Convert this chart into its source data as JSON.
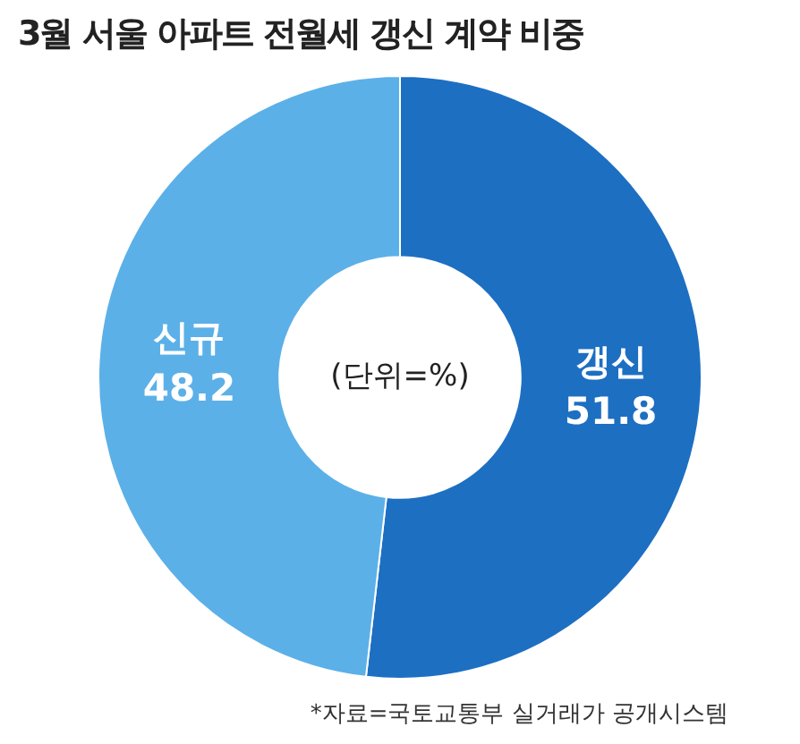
{
  "chart_data": {
    "type": "donut",
    "title": "3월 서울 아파트 전월세 갱신 계약 비중",
    "categories": [
      "갱신",
      "신규"
    ],
    "values": [
      51.8,
      48.2
    ],
    "colors": [
      "#1d6fc2",
      "#5cb0e8"
    ],
    "data_labels": true,
    "annotations": [
      "(단위=%)",
      "*자료=국토교통부 실거래가 공개시스템"
    ]
  }
}
